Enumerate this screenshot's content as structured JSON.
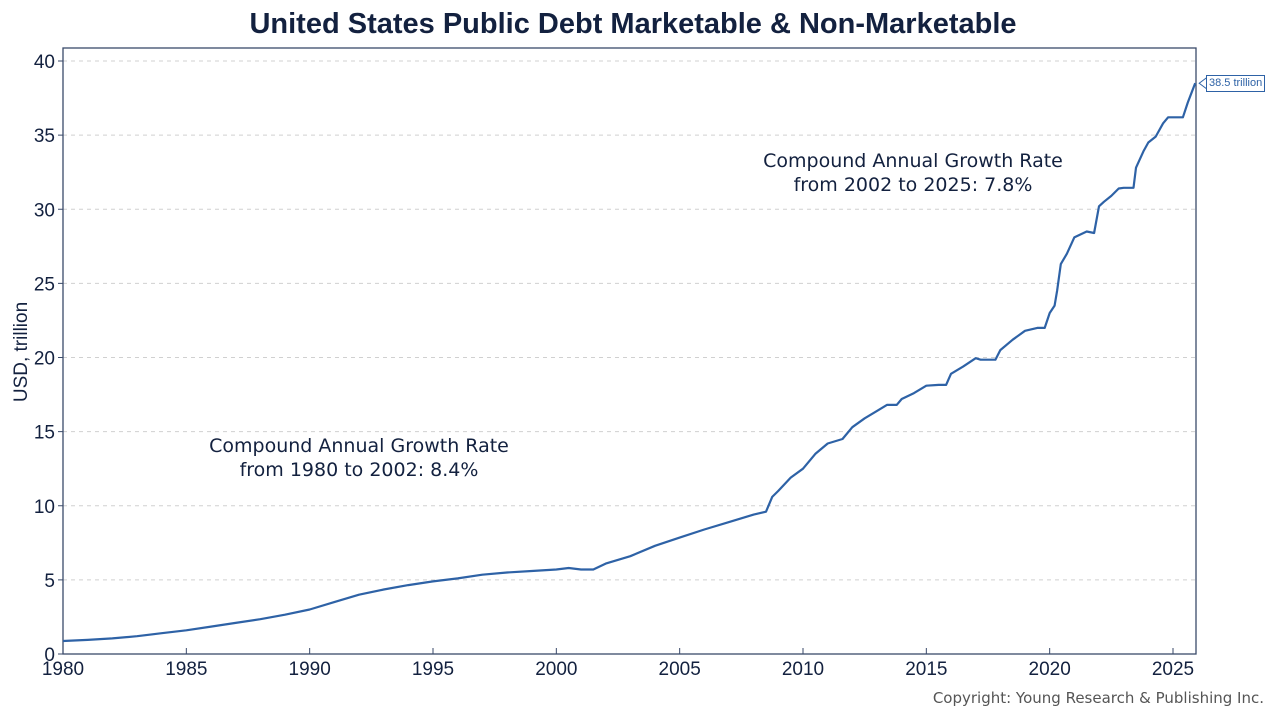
{
  "chart_data": {
    "type": "line",
    "title": "United States Public Debt Marketable & Non-Marketable",
    "xlabel": "",
    "ylabel": "USD, trillion",
    "xlim": [
      1980,
      2026
    ],
    "ylim": [
      0,
      40
    ],
    "x_ticks": [
      "1980",
      "1985",
      "1990",
      "1995",
      "2000",
      "2005",
      "2010",
      "2015",
      "2020",
      "2025"
    ],
    "y_ticks": [
      "0",
      "5",
      "10",
      "15",
      "20",
      "25",
      "30",
      "35",
      "40"
    ],
    "grid": true,
    "series": [
      {
        "name": "Public Debt",
        "color": "#2e62a6",
        "x": [
          1980,
          1981,
          1982,
          1983,
          1984,
          1985,
          1986,
          1987,
          1988,
          1989,
          1990,
          1991,
          1992,
          1993,
          1994,
          1995,
          1996,
          1997,
          1998,
          1999,
          2000,
          2000.5,
          2001,
          2001.5,
          2002,
          2003,
          2004,
          2005,
          2006,
          2007,
          2008,
          2008.5,
          2008.75,
          2009,
          2009.5,
          2010,
          2010.5,
          2011,
          2011.6,
          2012,
          2012.5,
          2013,
          2013.4,
          2013.8,
          2014,
          2014.5,
          2015,
          2015.5,
          2015.8,
          2016,
          2016.5,
          2017,
          2017.2,
          2017.8,
          2018,
          2018.5,
          2019,
          2019.5,
          2019.8,
          2020,
          2020.2,
          2020.3,
          2020.45,
          2020.7,
          2021,
          2021.5,
          2021.8,
          2022,
          2022.2,
          2022.5,
          2022.8,
          2023,
          2023.4,
          2023.5,
          2023.8,
          2024,
          2024.3,
          2024.6,
          2024.8,
          2025,
          2025.4,
          2025.6,
          2025.9
        ],
        "values": [
          0.88,
          0.95,
          1.05,
          1.2,
          1.4,
          1.6,
          1.85,
          2.1,
          2.35,
          2.65,
          3.0,
          3.5,
          4.0,
          4.35,
          4.65,
          4.9,
          5.1,
          5.35,
          5.5,
          5.6,
          5.7,
          5.8,
          5.7,
          5.7,
          6.1,
          6.6,
          7.3,
          7.85,
          8.4,
          8.9,
          9.4,
          9.6,
          10.6,
          11.0,
          11.9,
          12.5,
          13.5,
          14.2,
          14.5,
          15.3,
          15.9,
          16.4,
          16.8,
          16.8,
          17.2,
          17.6,
          18.1,
          18.15,
          18.15,
          18.9,
          19.4,
          19.95,
          19.85,
          19.85,
          20.5,
          21.2,
          21.8,
          22.0,
          22.0,
          23.0,
          23.5,
          24.5,
          26.3,
          27.0,
          28.1,
          28.5,
          28.4,
          30.2,
          30.5,
          30.9,
          31.4,
          31.45,
          31.45,
          32.8,
          33.9,
          34.5,
          34.9,
          35.8,
          36.2,
          36.2,
          36.2,
          37.2,
          38.5
        ]
      }
    ],
    "end_label": "38.5 trillion",
    "annotations": [
      {
        "line1": "Compound Annual Growth Rate",
        "line2": "from 1980 to 2002: 8.4%"
      },
      {
        "line1": "Compound Annual Growth Rate",
        "line2": "from 2002 to 2025: 7.8%"
      }
    ]
  },
  "footer": {
    "copyright": "Copyright: Young Research & Publishing Inc."
  }
}
